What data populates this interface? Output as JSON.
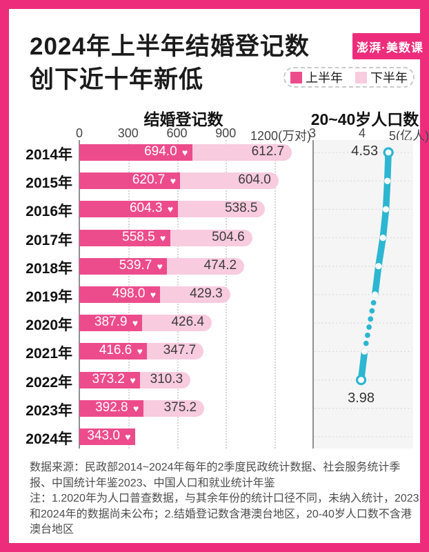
{
  "colors": {
    "frame": "#ed2d7c",
    "first_half": "#ed4c8c",
    "second_half": "#f8cbdf",
    "line": "#2cb6d1",
    "panel_bg": "#f5f5f6"
  },
  "header": {
    "title_line1": "2024年上半年结婚登记数",
    "title_line2": "创下近十年新低",
    "logo_text": "澎湃·美数课",
    "legend": [
      {
        "label": "上半年",
        "color": "#ed4c8c"
      },
      {
        "label": "下半年",
        "color": "#f8cbdf"
      }
    ]
  },
  "chart_data": [
    {
      "type": "bar",
      "title": "结婚登记数",
      "orientation": "horizontal-stacked",
      "unit": "万对",
      "xlim": [
        0,
        1400
      ],
      "x_ticks": [
        {
          "label": "0",
          "value": 0
        },
        {
          "label": "300",
          "value": 300
        },
        {
          "label": "600",
          "value": 600
        },
        {
          "label": "900",
          "value": 900
        },
        {
          "label": "1200(万对)",
          "value": 1200
        }
      ],
      "categories": [
        "2014年",
        "2015年",
        "2016年",
        "2017年",
        "2018年",
        "2019年",
        "2020年",
        "2021年",
        "2022年",
        "2023年",
        "2024年"
      ],
      "series": [
        {
          "name": "上半年",
          "values": [
            694.0,
            620.7,
            604.3,
            558.5,
            539.7,
            498.0,
            387.9,
            416.6,
            373.2,
            392.8,
            343.0
          ]
        },
        {
          "name": "下半年",
          "values": [
            612.7,
            604.0,
            538.5,
            504.6,
            474.2,
            429.3,
            426.4,
            347.7,
            310.3,
            375.2,
            null
          ]
        }
      ],
      "marker": "heart"
    },
    {
      "type": "line",
      "title": "20~40岁人口数",
      "unit": "亿人",
      "xlim": [
        3,
        5
      ],
      "x_ticks": [
        {
          "label": "3",
          "value": 3
        },
        {
          "label": "4",
          "value": 4
        },
        {
          "label": "5(亿人)",
          "value": 5
        }
      ],
      "categories": [
        "2014年",
        "2015年",
        "2016年",
        "2017年",
        "2018年",
        "2019年",
        "2020年",
        "2021年",
        "2022年",
        "2023年",
        "2024年"
      ],
      "values": [
        4.53,
        4.51,
        4.48,
        4.42,
        4.33,
        4.26,
        null,
        4.05,
        3.98,
        null,
        null
      ],
      "gap_style": "dotted",
      "point_labels": [
        {
          "index": 0,
          "text": "4.53",
          "placement": "left"
        },
        {
          "index": 8,
          "text": "3.98",
          "placement": "below"
        }
      ],
      "grid": "horizontal-dotted",
      "legend_position": "none"
    }
  ],
  "footer": {
    "source": "数据来源：民政部2014~2024年每年的2季度民政统计数据、社会服务统计季报、中国统计年鉴2023、中国人口和就业统计年鉴",
    "note": "注：1.2020年为人口普查数据，与其余年份的统计口径不同，未纳入统计，2023和2024年的数据尚未公布；2.结婚登记数含港澳台地区，20-40岁人口数不含港澳台地区"
  }
}
